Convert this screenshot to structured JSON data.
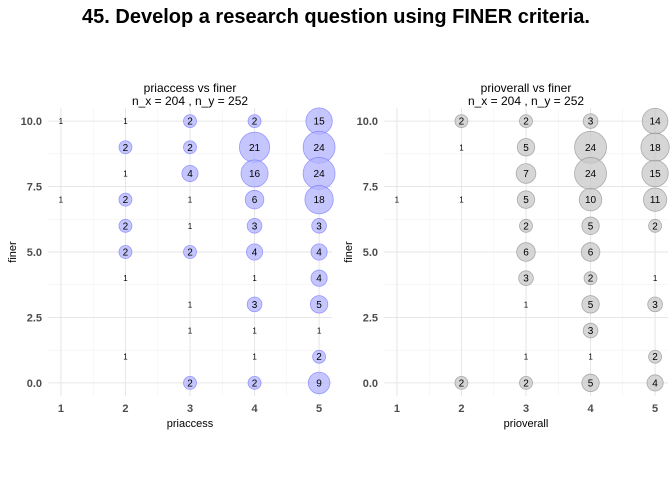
{
  "title": "45. Develop a research question using FINER criteria.",
  "chart_data": [
    {
      "type": "scatter",
      "subtype": "count-bubble",
      "title": "priaccess vs finer",
      "subtitle": "n_x = 204 , n_y = 252",
      "xlabel": "priaccess",
      "ylabel": "finer",
      "xlim": [
        0.8,
        5.2
      ],
      "ylim": [
        -0.5,
        10.5
      ],
      "x_ticks": [
        1,
        2,
        3,
        4,
        5
      ],
      "y_ticks": [
        0.0,
        2.5,
        5.0,
        7.5,
        10.0
      ],
      "y_tick_labels": [
        "0.0",
        "2.5",
        "5.0",
        "7.5",
        "10.0"
      ],
      "grid": true,
      "bubble_fill": "#b3b3ff",
      "bubble_stroke": "#6666ff",
      "points": [
        {
          "x": 1,
          "y": 10,
          "n": 1
        },
        {
          "x": 2,
          "y": 10,
          "n": 1
        },
        {
          "x": 3,
          "y": 10,
          "n": 2
        },
        {
          "x": 4,
          "y": 10,
          "n": 2
        },
        {
          "x": 5,
          "y": 10,
          "n": 15
        },
        {
          "x": 2,
          "y": 9,
          "n": 2
        },
        {
          "x": 3,
          "y": 9,
          "n": 2
        },
        {
          "x": 4,
          "y": 9,
          "n": 21
        },
        {
          "x": 5,
          "y": 9,
          "n": 24
        },
        {
          "x": 2,
          "y": 8,
          "n": 1
        },
        {
          "x": 3,
          "y": 8,
          "n": 4
        },
        {
          "x": 4,
          "y": 8,
          "n": 16
        },
        {
          "x": 5,
          "y": 8,
          "n": 24
        },
        {
          "x": 1,
          "y": 7,
          "n": 1
        },
        {
          "x": 2,
          "y": 7,
          "n": 2
        },
        {
          "x": 3,
          "y": 7,
          "n": 1
        },
        {
          "x": 4,
          "y": 7,
          "n": 6
        },
        {
          "x": 5,
          "y": 7,
          "n": 18
        },
        {
          "x": 2,
          "y": 6,
          "n": 2
        },
        {
          "x": 3,
          "y": 6,
          "n": 1
        },
        {
          "x": 4,
          "y": 6,
          "n": 3
        },
        {
          "x": 5,
          "y": 6,
          "n": 3
        },
        {
          "x": 2,
          "y": 5,
          "n": 2
        },
        {
          "x": 3,
          "y": 5,
          "n": 2
        },
        {
          "x": 4,
          "y": 5,
          "n": 4
        },
        {
          "x": 5,
          "y": 5,
          "n": 4
        },
        {
          "x": 2,
          "y": 4,
          "n": 1
        },
        {
          "x": 4,
          "y": 4,
          "n": 1
        },
        {
          "x": 5,
          "y": 4,
          "n": 4
        },
        {
          "x": 3,
          "y": 3,
          "n": 1
        },
        {
          "x": 4,
          "y": 3,
          "n": 3
        },
        {
          "x": 5,
          "y": 3,
          "n": 5
        },
        {
          "x": 3,
          "y": 2,
          "n": 1
        },
        {
          "x": 4,
          "y": 2,
          "n": 1
        },
        {
          "x": 5,
          "y": 2,
          "n": 1
        },
        {
          "x": 2,
          "y": 1,
          "n": 1
        },
        {
          "x": 4,
          "y": 1,
          "n": 1
        },
        {
          "x": 5,
          "y": 1,
          "n": 2
        },
        {
          "x": 3,
          "y": 0,
          "n": 2
        },
        {
          "x": 4,
          "y": 0,
          "n": 2
        },
        {
          "x": 5,
          "y": 0,
          "n": 9
        }
      ]
    },
    {
      "type": "scatter",
      "subtype": "count-bubble",
      "title": "prioverall vs finer",
      "subtitle": "n_x = 204 , n_y = 252",
      "xlabel": "prioverall",
      "ylabel": "finer",
      "xlim": [
        0.8,
        5.2
      ],
      "ylim": [
        -0.5,
        10.5
      ],
      "x_ticks": [
        1,
        2,
        3,
        4,
        5
      ],
      "y_ticks": [
        0.0,
        2.5,
        5.0,
        7.5,
        10.0
      ],
      "y_tick_labels": [
        "0.0",
        "2.5",
        "5.0",
        "7.5",
        "10.0"
      ],
      "grid": true,
      "bubble_fill": "#c8c8c8",
      "bubble_stroke": "#808080",
      "points": [
        {
          "x": 2,
          "y": 10,
          "n": 2
        },
        {
          "x": 3,
          "y": 10,
          "n": 2
        },
        {
          "x": 4,
          "y": 10,
          "n": 3
        },
        {
          "x": 5,
          "y": 10,
          "n": 14
        },
        {
          "x": 2,
          "y": 9,
          "n": 1
        },
        {
          "x": 3,
          "y": 9,
          "n": 5
        },
        {
          "x": 4,
          "y": 9,
          "n": 24
        },
        {
          "x": 5,
          "y": 9,
          "n": 18
        },
        {
          "x": 3,
          "y": 8,
          "n": 7
        },
        {
          "x": 4,
          "y": 8,
          "n": 24
        },
        {
          "x": 5,
          "y": 8,
          "n": 15
        },
        {
          "x": 1,
          "y": 7,
          "n": 1
        },
        {
          "x": 2,
          "y": 7,
          "n": 1
        },
        {
          "x": 3,
          "y": 7,
          "n": 5
        },
        {
          "x": 4,
          "y": 7,
          "n": 10
        },
        {
          "x": 5,
          "y": 7,
          "n": 11
        },
        {
          "x": 3,
          "y": 6,
          "n": 2
        },
        {
          "x": 4,
          "y": 6,
          "n": 5
        },
        {
          "x": 5,
          "y": 6,
          "n": 2
        },
        {
          "x": 3,
          "y": 5,
          "n": 6
        },
        {
          "x": 4,
          "y": 5,
          "n": 6
        },
        {
          "x": 3,
          "y": 4,
          "n": 3
        },
        {
          "x": 4,
          "y": 4,
          "n": 2
        },
        {
          "x": 5,
          "y": 4,
          "n": 1
        },
        {
          "x": 3,
          "y": 3,
          "n": 1
        },
        {
          "x": 4,
          "y": 3,
          "n": 5
        },
        {
          "x": 5,
          "y": 3,
          "n": 3
        },
        {
          "x": 4,
          "y": 2,
          "n": 3
        },
        {
          "x": 3,
          "y": 1,
          "n": 1
        },
        {
          "x": 4,
          "y": 1,
          "n": 1
        },
        {
          "x": 5,
          "y": 1,
          "n": 2
        },
        {
          "x": 2,
          "y": 0,
          "n": 2
        },
        {
          "x": 3,
          "y": 0,
          "n": 2
        },
        {
          "x": 4,
          "y": 0,
          "n": 5
        },
        {
          "x": 5,
          "y": 0,
          "n": 4
        }
      ]
    }
  ]
}
